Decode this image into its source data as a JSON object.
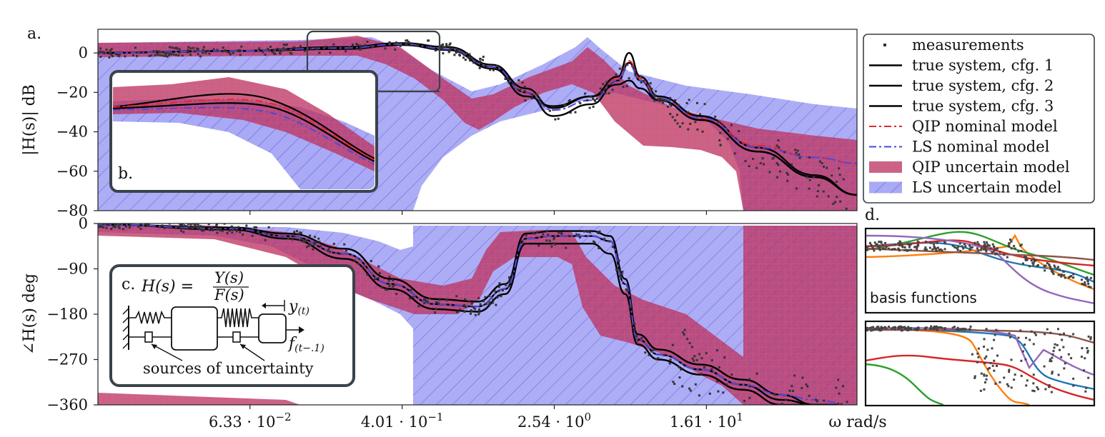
{
  "panel_labels": {
    "a": "a.",
    "b": "b.",
    "c": "c.",
    "d": "d."
  },
  "colors": {
    "red": "#e8262c",
    "red_fill": "#c4224a",
    "blue": "#4a4adf",
    "blue_fill": "#a8a8f4",
    "black": "#000000",
    "measure": "#333333",
    "inset_border": "#3a434a",
    "basis": [
      "#1f77b4",
      "#ff7f0e",
      "#2ca02c",
      "#d62728",
      "#9467bd",
      "#8c564b"
    ]
  },
  "chart_data": [
    {
      "id": "magnitude",
      "type": "line",
      "ylabel": "|H(s)| dB",
      "y_ticks": [
        "0",
        "−20",
        "−40",
        "−60",
        "−80"
      ],
      "y_tick_values": [
        0,
        -20,
        -40,
        -60,
        -80
      ],
      "ylim": [
        -80,
        12
      ],
      "xscale": "log",
      "xlim": [
        0.01,
        100
      ],
      "series": [
        {
          "name": "true system, cfg. 1",
          "x": [
            0.01,
            0.05,
            0.2,
            0.4,
            0.7,
            1.2,
            1.8,
            2.5,
            4,
            5.5,
            6.3,
            7.2,
            9,
            15,
            30,
            60,
            100
          ],
          "y": [
            0,
            1,
            3,
            5,
            3,
            -6,
            -18,
            -28,
            -22,
            -12,
            0,
            -12,
            -22,
            -32,
            -48,
            -62,
            -72
          ]
        },
        {
          "name": "true system, cfg. 2",
          "x": [
            0.01,
            0.05,
            0.2,
            0.4,
            0.7,
            1.2,
            1.8,
            2.5,
            4,
            5.5,
            6.3,
            7.2,
            9,
            15,
            30,
            60,
            100
          ],
          "y": [
            0,
            1,
            2.5,
            4.5,
            2,
            -7,
            -20,
            -32,
            -26,
            -14,
            -5,
            -14,
            -24,
            -34,
            -50,
            -63,
            -72
          ]
        },
        {
          "name": "true system, cfg. 3",
          "x": [
            0.01,
            0.05,
            0.2,
            0.4,
            0.7,
            1.2,
            1.8,
            2.5,
            4,
            5.5,
            6.3,
            7.2,
            9,
            15,
            30,
            60,
            100
          ],
          "y": [
            0,
            1,
            2,
            4,
            1.5,
            -8,
            -22,
            -27,
            -22,
            -16,
            -14,
            -18,
            -24,
            -34,
            -50,
            -63,
            -72
          ]
        },
        {
          "name": "QIP nominal model",
          "x": [
            0.01,
            0.05,
            0.2,
            0.4,
            0.7,
            1.2,
            1.8,
            2.5,
            4,
            5.5,
            6.3,
            7.2,
            9,
            15,
            30,
            60,
            100
          ],
          "y": [
            0,
            1,
            2.5,
            4.5,
            2,
            -7,
            -20,
            -29,
            -24,
            -13,
            -4,
            -13,
            -23,
            -33,
            -47,
            -53,
            -56
          ]
        },
        {
          "name": "LS nominal model",
          "x": [
            0.01,
            0.05,
            0.2,
            0.4,
            0.7,
            1.2,
            1.8,
            2.5,
            4,
            5.5,
            6.3,
            7.2,
            9,
            15,
            30,
            60,
            100
          ],
          "y": [
            0,
            1,
            2.5,
            4.5,
            2,
            -7,
            -20,
            -29,
            -24,
            -14,
            -6,
            -14,
            -23,
            -33,
            -48,
            -53,
            -56
          ]
        }
      ]
    },
    {
      "id": "phase",
      "type": "line",
      "ylabel": "∠H(s) deg",
      "y_ticks": [
        "0",
        "−90",
        "−180",
        "−270",
        "−360"
      ],
      "y_tick_values": [
        0,
        -90,
        -180,
        -270,
        -360
      ],
      "ylim": [
        -360,
        0
      ],
      "xscale": "log",
      "xlim": [
        0.01,
        100
      ],
      "x_ticks": [
        "6.33 · 10−2",
        "4.01 · 10−1",
        "2.54 · 100",
        "1.61 · 101"
      ],
      "x_tick_values": [
        0.0633,
        0.401,
        2.54,
        16.1
      ],
      "xlabel": "ω rad/s",
      "series": [
        {
          "name": "true system, cfg. 1",
          "x": [
            0.01,
            0.05,
            0.1,
            0.2,
            0.35,
            0.6,
            1,
            1.4,
            1.8,
            2.5,
            4,
            5,
            6,
            7,
            9,
            15,
            25,
            40,
            60,
            80
          ],
          "y": [
            -2,
            -8,
            -20,
            -50,
            -110,
            -150,
            -155,
            -120,
            -20,
            -15,
            -15,
            -25,
            -110,
            -220,
            -250,
            -280,
            -310,
            -340,
            -360,
            -360
          ]
        },
        {
          "name": "true system, cfg. 2",
          "x": [
            0.01,
            0.05,
            0.1,
            0.2,
            0.35,
            0.6,
            1,
            1.4,
            1.8,
            2.5,
            4,
            5,
            6,
            7,
            9,
            15,
            25,
            40,
            60,
            80
          ],
          "y": [
            -2,
            -10,
            -25,
            -60,
            -120,
            -160,
            -165,
            -130,
            -30,
            -25,
            -25,
            -35,
            -120,
            -230,
            -260,
            -290,
            -320,
            -350,
            -360,
            -360
          ]
        },
        {
          "name": "true system, cfg. 3",
          "x": [
            0.01,
            0.05,
            0.1,
            0.2,
            0.35,
            0.6,
            1,
            1.4,
            1.8,
            2.5,
            4,
            5,
            6,
            7,
            9,
            15,
            25,
            40,
            60,
            80
          ],
          "y": [
            -2,
            -12,
            -30,
            -70,
            -130,
            -170,
            -175,
            -140,
            -40,
            -40,
            -40,
            -60,
            -140,
            -240,
            -270,
            -300,
            -330,
            -360,
            -360,
            -360
          ]
        },
        {
          "name": "QIP nominal model",
          "x": [
            0.01,
            0.05,
            0.1,
            0.2,
            0.35,
            0.6,
            1,
            1.4,
            1.8,
            2.5,
            4,
            5,
            6,
            7,
            9,
            15,
            25,
            40,
            60,
            80
          ],
          "y": [
            -2,
            -10,
            -25,
            -60,
            -120,
            -160,
            -165,
            -130,
            -30,
            -25,
            -25,
            -35,
            -120,
            -230,
            -260,
            -290,
            -320,
            -340,
            -350,
            -355
          ]
        },
        {
          "name": "LS nominal model",
          "x": [
            0.01,
            0.05,
            0.1,
            0.2,
            0.35,
            0.6,
            1,
            1.4,
            1.8,
            2.5,
            4,
            5,
            6,
            7,
            9,
            15,
            25,
            40,
            60,
            80
          ],
          "y": [
            -2,
            -10,
            -25,
            -60,
            -120,
            -160,
            -165,
            -130,
            -30,
            -25,
            -25,
            -35,
            -120,
            -230,
            -260,
            -290,
            -320,
            -340,
            -350,
            -355
          ]
        }
      ]
    }
  ],
  "legend": {
    "items": [
      {
        "label": "measurements",
        "kind": "dot"
      },
      {
        "label": "true system, cfg. 1",
        "kind": "line-black"
      },
      {
        "label": "true system, cfg. 2",
        "kind": "line-black"
      },
      {
        "label": "true system, cfg. 3",
        "kind": "line-black"
      },
      {
        "label": "QIP nominal model",
        "kind": "dashdot-red"
      },
      {
        "label": "LS nominal model",
        "kind": "dashdot-blue"
      },
      {
        "label": "QIP uncertain model",
        "kind": "patch-red"
      },
      {
        "label": "LS uncertain model",
        "kind": "patch-blue"
      }
    ]
  },
  "inset_c": {
    "formula_lhs": "H(s) =",
    "formula_num": "Y(s)",
    "formula_den": "F(s)",
    "y_label": "y",
    "y_sub": "(t)",
    "f_label": "f",
    "f_sub": "(t−.1)",
    "caption": "sources of uncertainty"
  },
  "inset_d": {
    "caption": "basis functions"
  }
}
